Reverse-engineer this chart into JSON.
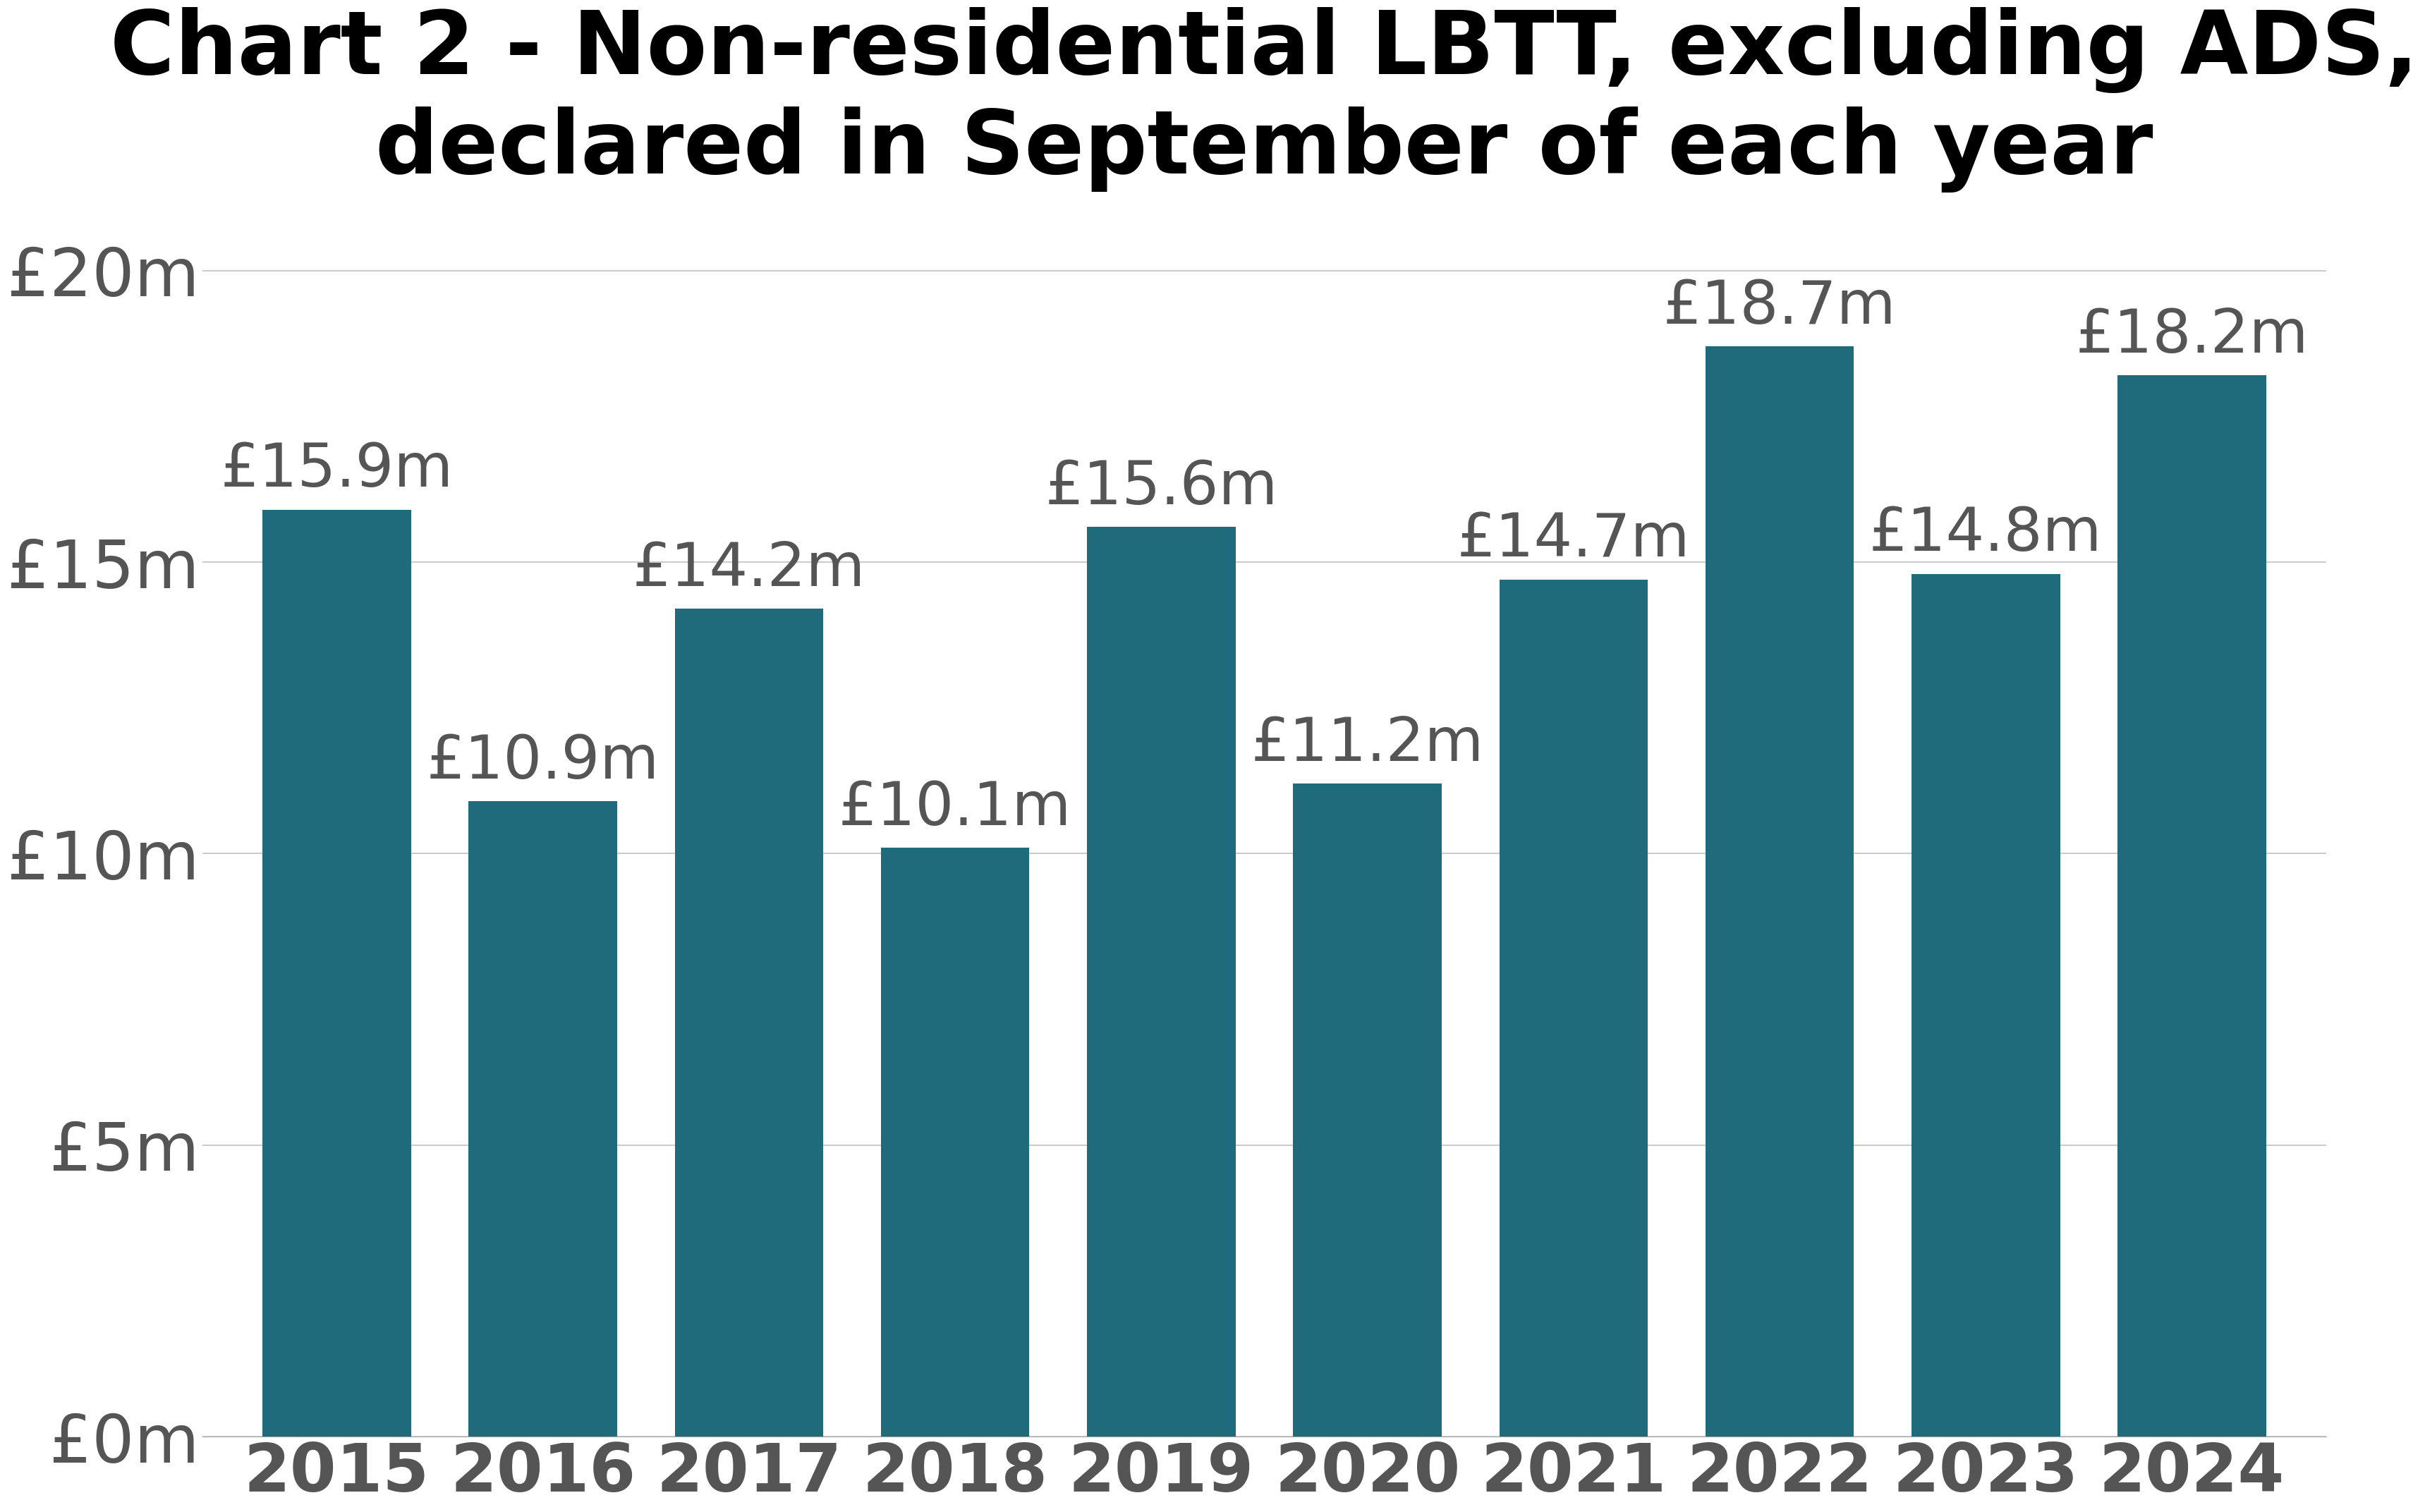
{
  "title": "Chart 2 - Non-residential LBTT, excluding ADS,\ndeclared in September of each year",
  "categories": [
    "2015",
    "2016",
    "2017",
    "2018",
    "2019",
    "2020",
    "2021",
    "2022",
    "2023",
    "2024"
  ],
  "values": [
    15.9,
    10.9,
    14.2,
    10.1,
    15.6,
    11.2,
    14.7,
    18.7,
    14.8,
    18.2
  ],
  "labels": [
    "£15.9m",
    "£10.9m",
    "£14.2m",
    "£10.1m",
    "£15.6m",
    "£11.2m",
    "£14.7m",
    "£18.7m",
    "£14.8m",
    "£18.2m"
  ],
  "bar_color": "#1F6B7C",
  "background_color": "#ffffff",
  "ylim": [
    0,
    21
  ],
  "yticks": [
    0,
    5,
    10,
    15,
    20
  ],
  "ytick_labels": [
    "£0m",
    "£5m",
    "£10m",
    "£15m",
    "£20m"
  ],
  "title_fontsize": 90,
  "tick_fontsize": 68,
  "label_fontsize": 62,
  "bar_width": 0.72,
  "tick_color": "#555555",
  "title_color": "#000000",
  "label_color": "#555555"
}
